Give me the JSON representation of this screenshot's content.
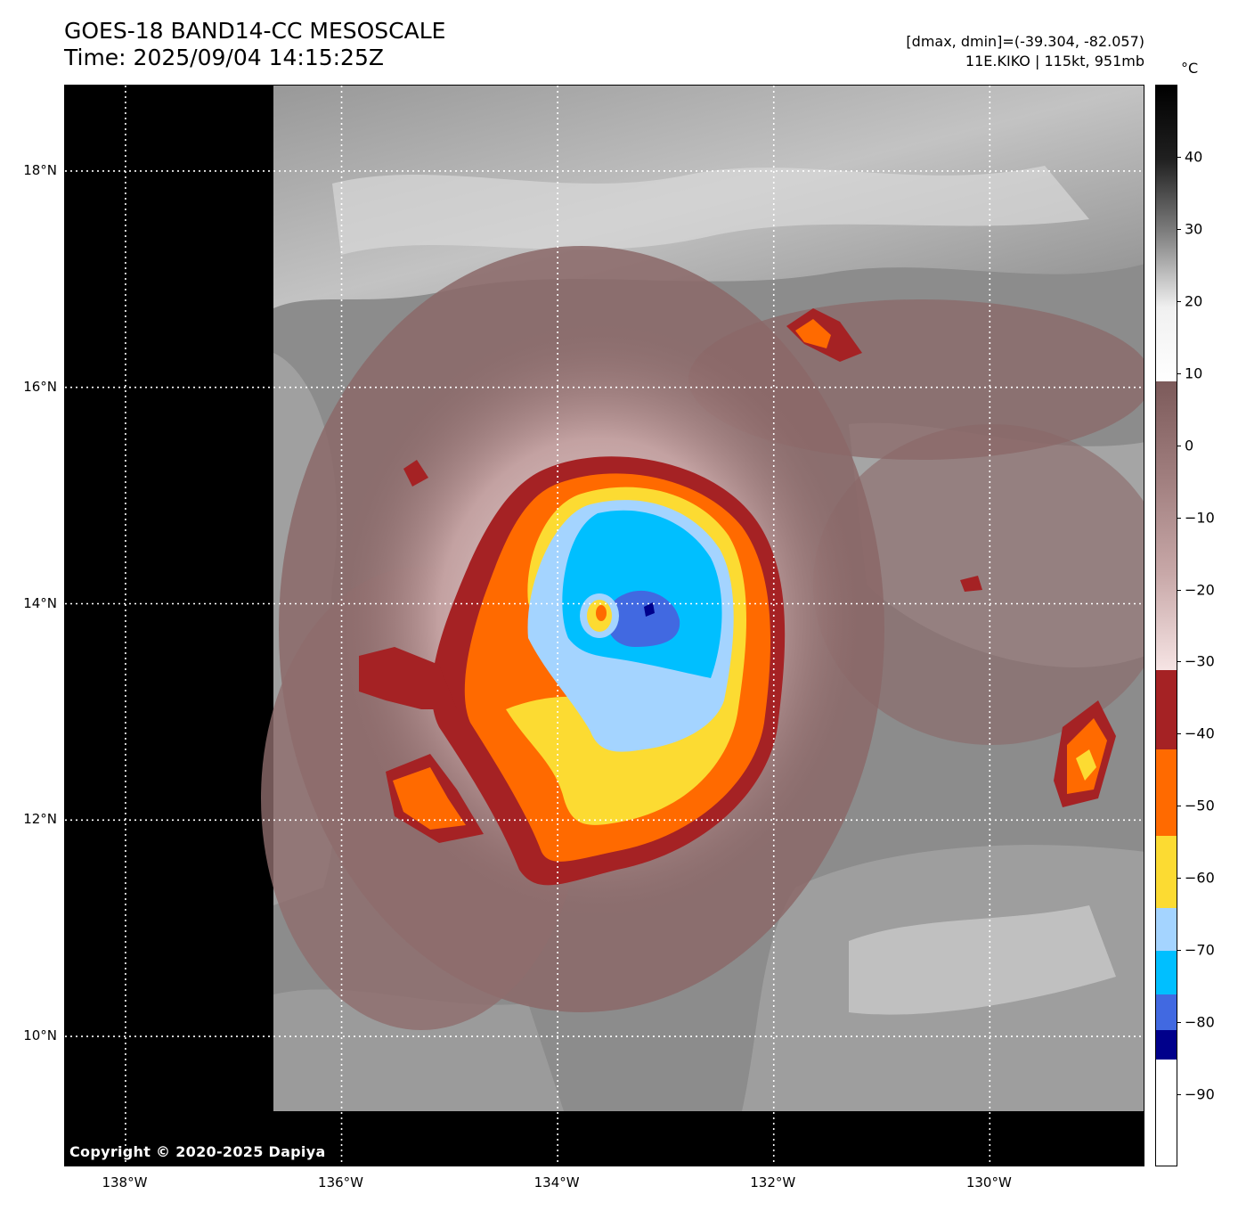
{
  "header": {
    "title_line1": "GOES-18 BAND14-CC MESOSCALE",
    "title_line2": "Time: 2025/09/04 14:15:25Z",
    "stats_line": "[dmax, dmin]=(-39.304, -82.057)",
    "storm_line": "11E.KIKO | 115kt, 951mb"
  },
  "map": {
    "copyright": "Copyright © 2020-2025 Dapiya",
    "lat_ticks": [
      {
        "label": "18°N",
        "value": 18
      },
      {
        "label": "16°N",
        "value": 16
      },
      {
        "label": "14°N",
        "value": 14
      },
      {
        "label": "12°N",
        "value": 12
      },
      {
        "label": "10°N",
        "value": 10
      }
    ],
    "lon_ticks": [
      {
        "label": "138°W",
        "value": -138
      },
      {
        "label": "136°W",
        "value": -136
      },
      {
        "label": "134°W",
        "value": -134
      },
      {
        "label": "132°W",
        "value": -132
      },
      {
        "label": "130°W",
        "value": -130
      }
    ],
    "lat_range": [
      8.79,
      18.79
    ],
    "lon_range": [
      -138.56,
      -128.56
    ],
    "storm_center": {
      "lat": 13.9,
      "lon": -133.4
    }
  },
  "colorbar": {
    "unit": "°C",
    "range": [
      -100,
      50
    ],
    "ticks": [
      40,
      30,
      20,
      10,
      0,
      -10,
      -20,
      -30,
      -40,
      -50,
      -60,
      -70,
      -80,
      -90
    ],
    "tick_labels": [
      "40",
      "30",
      "20",
      "10",
      "0",
      "−10",
      "−20",
      "−30",
      "−40",
      "−50",
      "−60",
      "−70",
      "−80",
      "−90"
    ],
    "segments": [
      {
        "from": 50,
        "to": 9,
        "colors": [
          "#000000",
          "#202020",
          "#808080",
          "#f0f0f0",
          "#ffffff"
        ]
      },
      {
        "from": 9,
        "to": -31,
        "colors": [
          "#7c5a5a",
          "#a07e7e",
          "#c8a8a8",
          "#f6e4e4"
        ]
      },
      {
        "from": -31,
        "to": -42,
        "color": "#a52224"
      },
      {
        "from": -42,
        "to": -54,
        "color": "#ff6a00"
      },
      {
        "from": -54,
        "to": -64,
        "color": "#fcdb32"
      },
      {
        "from": -64,
        "to": -70,
        "color": "#a4d4ff"
      },
      {
        "from": -70,
        "to": -76,
        "color": "#00bfff"
      },
      {
        "from": -76,
        "to": -81,
        "color": "#4169e1"
      },
      {
        "from": -81,
        "to": -85,
        "color": "#00008b"
      },
      {
        "from": -85,
        "to": -100,
        "color": "#ffffff"
      }
    ]
  }
}
